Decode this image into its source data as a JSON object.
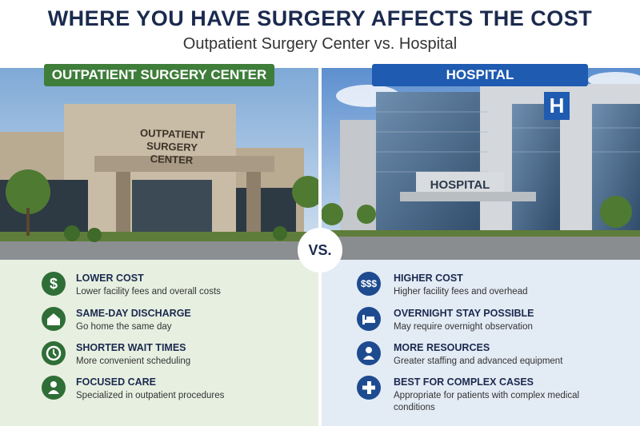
{
  "header": {
    "title": "WHERE YOU HAVE SURGERY AFFECTS THE COST",
    "subtitle": "Outpatient Surgery Center vs. Hospital"
  },
  "vs": "VS.",
  "panels": [
    {
      "label": "OUTPATIENT SURGERY CENTER",
      "sign": "OUTPATIENT SURGERY CENTER",
      "items": [
        {
          "icon_text": "$",
          "title": "LOWER COST",
          "text": "Lower facility fees and overall costs"
        },
        {
          "title": "SAME-DAY DISCHARGE",
          "text": "Go home the same day"
        },
        {
          "title": "SHORTER WAIT TIMES",
          "text": "More convenient scheduling"
        },
        {
          "title": "FOCUSED CARE",
          "text": "Specialized in outpatient procedures"
        }
      ]
    },
    {
      "label": "HOSPITAL",
      "sign": "HOSPITAL",
      "sign_icon": "H",
      "items": [
        {
          "icon_text": "$$$",
          "title": "HIGHER COST",
          "text": "Higher facility fees and overhead"
        },
        {
          "title": "OVERNIGHT STAY POSSIBLE",
          "text": "May require overnight observation"
        },
        {
          "title": "MORE RESOURCES",
          "text": "Greater staffing and advanced equipment"
        },
        {
          "title": "BEST FOR COMPLEX CASES",
          "text": "Appropriate for patients with complex medical conditions"
        }
      ]
    }
  ]
}
